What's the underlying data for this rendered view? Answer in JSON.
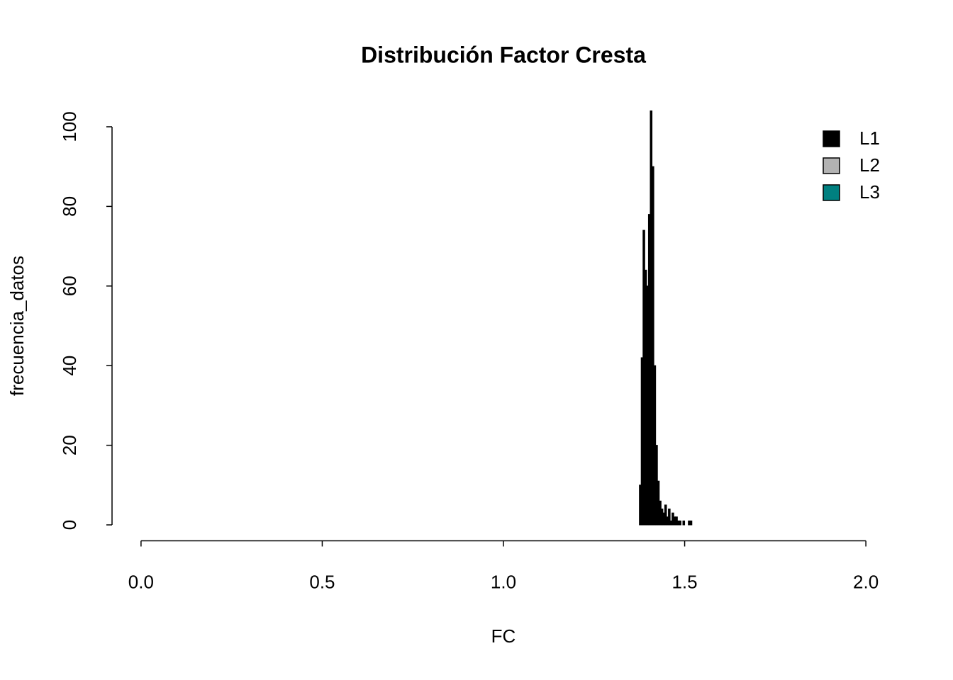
{
  "chart_data": {
    "type": "histogram",
    "title": "Distribución Factor Cresta",
    "x_label": "FC",
    "y_label": "frecuencia_datos",
    "bins": [
      1.375,
      1.38,
      1.385,
      1.39,
      1.395,
      1.4,
      1.405,
      1.41,
      1.415,
      1.42,
      1.425,
      1.43,
      1.435,
      1.44,
      1.445,
      1.45,
      1.455,
      1.46,
      1.465,
      1.47,
      1.475,
      1.48,
      1.485,
      1.49,
      1.495,
      1.5,
      1.505,
      1.51,
      1.515,
      1.52,
      1.525
    ],
    "values": [
      10,
      42,
      74,
      64,
      60,
      78,
      104,
      90,
      40,
      20,
      11,
      6,
      4,
      3,
      5,
      2,
      4,
      1,
      3,
      2,
      2,
      1,
      1,
      0,
      1,
      0,
      0,
      1,
      1,
      0
    ],
    "color": "#000000",
    "legend": [
      {
        "name": "L1",
        "color": "#000000"
      },
      {
        "name": "L2",
        "color": "#b3b3b3"
      },
      {
        "name": "L3",
        "color": "#008080"
      }
    ],
    "legend_position": "topright",
    "xlim": [
      -0.08,
      2.08
    ],
    "ylim": [
      -4,
      104
    ],
    "xticks": [
      {
        "value": 0,
        "label": "0.0"
      },
      0.5,
      {
        "value": 1,
        "label": "1.0"
      },
      1.5,
      {
        "value": 2,
        "label": "2.0"
      }
    ],
    "yticks": [
      0,
      20,
      40,
      60,
      80,
      100
    ]
  }
}
